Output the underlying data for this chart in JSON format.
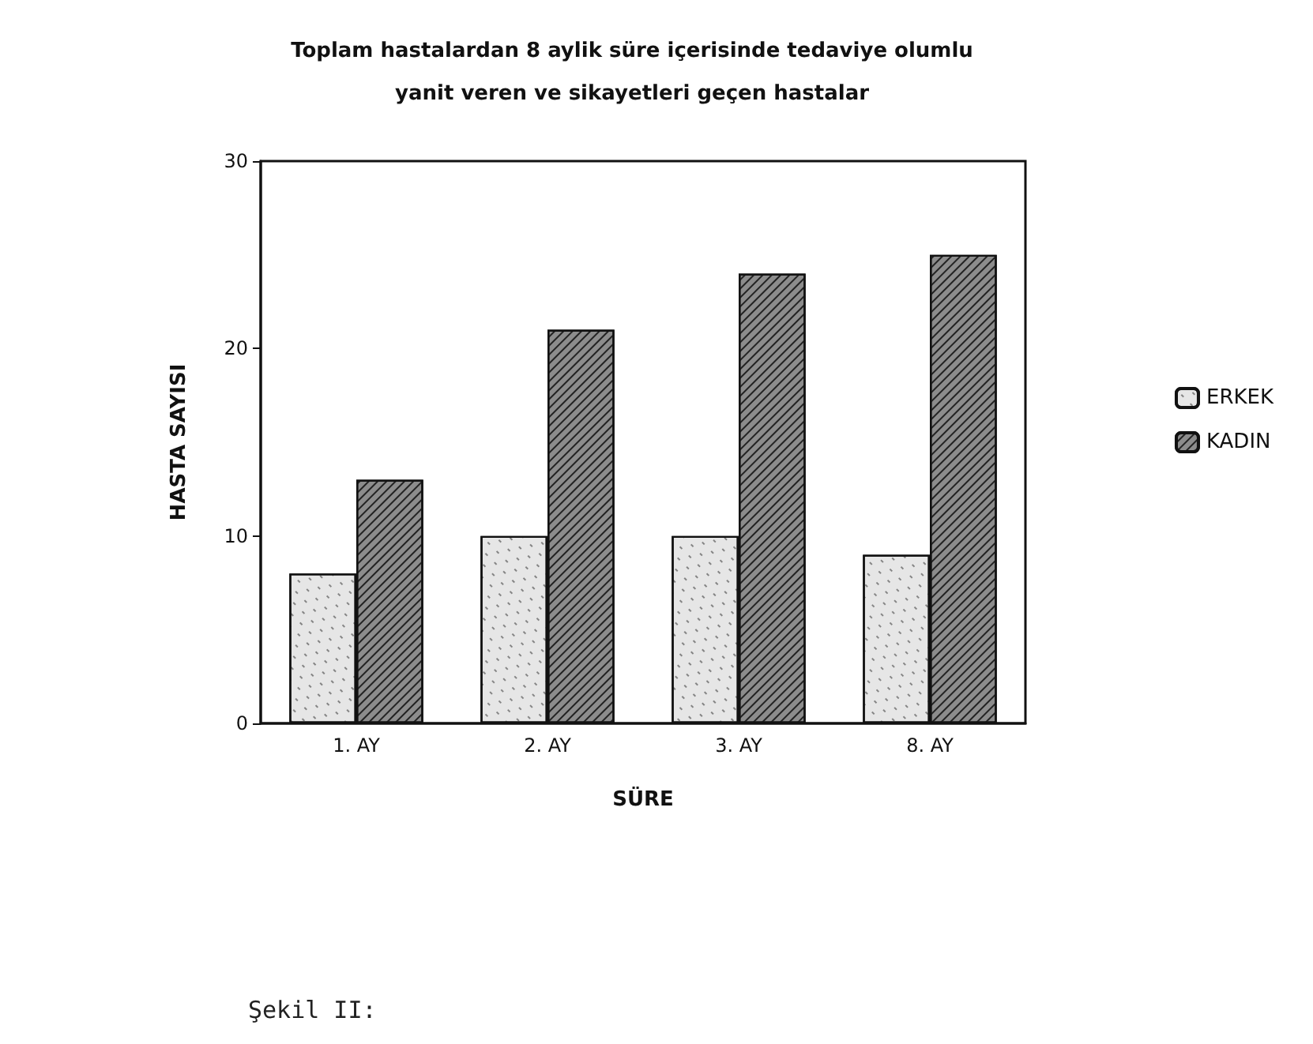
{
  "chart_data": {
    "type": "bar",
    "title": "Toplam hastalardan 8 aylik süre içerisinde tedaviye olumlu\nyanit veren ve sikayetleri geçen hastalar",
    "xlabel": "SÜRE",
    "ylabel": "HASTA SAYISI",
    "categories": [
      "1. AY",
      "2. AY",
      "3. AY",
      "8. AY"
    ],
    "series": [
      {
        "name": "ERKEK",
        "color": "#e6e6e6",
        "values": [
          8,
          10,
          10,
          9
        ]
      },
      {
        "name": "KADIN",
        "color": "#8c8c8c",
        "values": [
          13,
          21,
          24,
          25
        ]
      }
    ],
    "ylim": [
      0,
      30
    ],
    "yticks": [
      0,
      10,
      20,
      30
    ],
    "grid": false,
    "legend": "right",
    "annotations": [
      "Şekil II:"
    ]
  }
}
